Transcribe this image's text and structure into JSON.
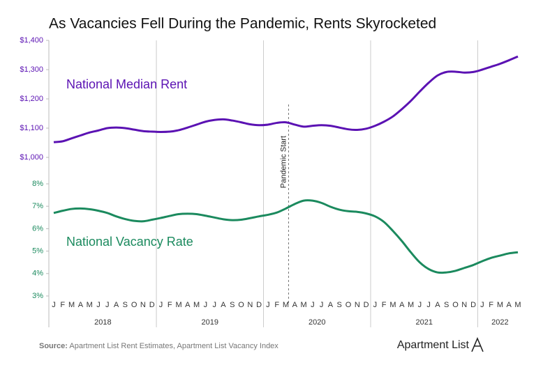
{
  "title": "As Vacancies Fell During the Pandemic, Rents Skyrocketed",
  "source": {
    "label": "Source:",
    "text": "Apartment List Rent Estimates, Apartment List Vacancy Index"
  },
  "logo": "Apartment List",
  "annotation": "Pandemic Start",
  "chart_data": [
    {
      "type": "line",
      "series": [
        {
          "name": "National Median Rent",
          "color": "#5b12b3",
          "values": [
            1052,
            1055,
            1065,
            1075,
            1085,
            1092,
            1100,
            1102,
            1100,
            1095,
            1090,
            1088,
            1087,
            1088,
            1093,
            1102,
            1112,
            1122,
            1128,
            1130,
            1126,
            1120,
            1113,
            1110,
            1112,
            1118,
            1120,
            1112,
            1105,
            1108,
            1110,
            1108,
            1102,
            1096,
            1094,
            1098,
            1108,
            1122,
            1140,
            1165,
            1193,
            1225,
            1255,
            1280,
            1292,
            1293,
            1290,
            1292,
            1300,
            1310,
            1320,
            1332,
            1345
          ]
        }
      ],
      "ylim": [
        1000,
        1400
      ],
      "yticks": [
        {
          "value": 1000,
          "label": "$1,000"
        },
        {
          "value": 1100,
          "label": "$1,100"
        },
        {
          "value": 1200,
          "label": "$1,200"
        },
        {
          "value": 1300,
          "label": "$1,300"
        },
        {
          "value": 1400,
          "label": "$1,400"
        }
      ]
    },
    {
      "type": "line",
      "categories": [
        "J",
        "F",
        "M",
        "A",
        "M",
        "J",
        "J",
        "A",
        "S",
        "O",
        "N",
        "D",
        "J",
        "F",
        "M",
        "A",
        "M",
        "J",
        "J",
        "A",
        "S",
        "O",
        "N",
        "D",
        "J",
        "F",
        "M",
        "A",
        "M",
        "J",
        "J",
        "A",
        "S",
        "O",
        "N",
        "D",
        "J",
        "F",
        "M",
        "A",
        "M",
        "J",
        "J",
        "A",
        "S",
        "O",
        "N",
        "D",
        "J",
        "F",
        "M",
        "A",
        "M"
      ],
      "year_labels": [
        "2018",
        "2019",
        "2020",
        "2021",
        "2022"
      ],
      "series": [
        {
          "name": "National Vacancy Rate",
          "color": "#1b8a5e",
          "values": [
            6.7,
            6.8,
            6.88,
            6.9,
            6.87,
            6.8,
            6.7,
            6.55,
            6.43,
            6.35,
            6.33,
            6.4,
            6.48,
            6.57,
            6.65,
            6.67,
            6.65,
            6.58,
            6.5,
            6.42,
            6.38,
            6.4,
            6.47,
            6.55,
            6.62,
            6.72,
            6.9,
            7.1,
            7.25,
            7.25,
            7.15,
            6.98,
            6.85,
            6.78,
            6.75,
            6.68,
            6.55,
            6.3,
            5.9,
            5.45,
            4.95,
            4.5,
            4.2,
            4.05,
            4.05,
            4.12,
            4.25,
            4.38,
            4.55,
            4.7,
            4.8,
            4.9,
            4.95
          ]
        }
      ],
      "ylim": [
        3,
        8
      ],
      "yticks": [
        {
          "value": 3,
          "label": "3%"
        },
        {
          "value": 4,
          "label": "4%"
        },
        {
          "value": 5,
          "label": "5%"
        },
        {
          "value": 6,
          "label": "6%"
        },
        {
          "value": 7,
          "label": "7%"
        },
        {
          "value": 8,
          "label": "8%"
        }
      ]
    }
  ]
}
